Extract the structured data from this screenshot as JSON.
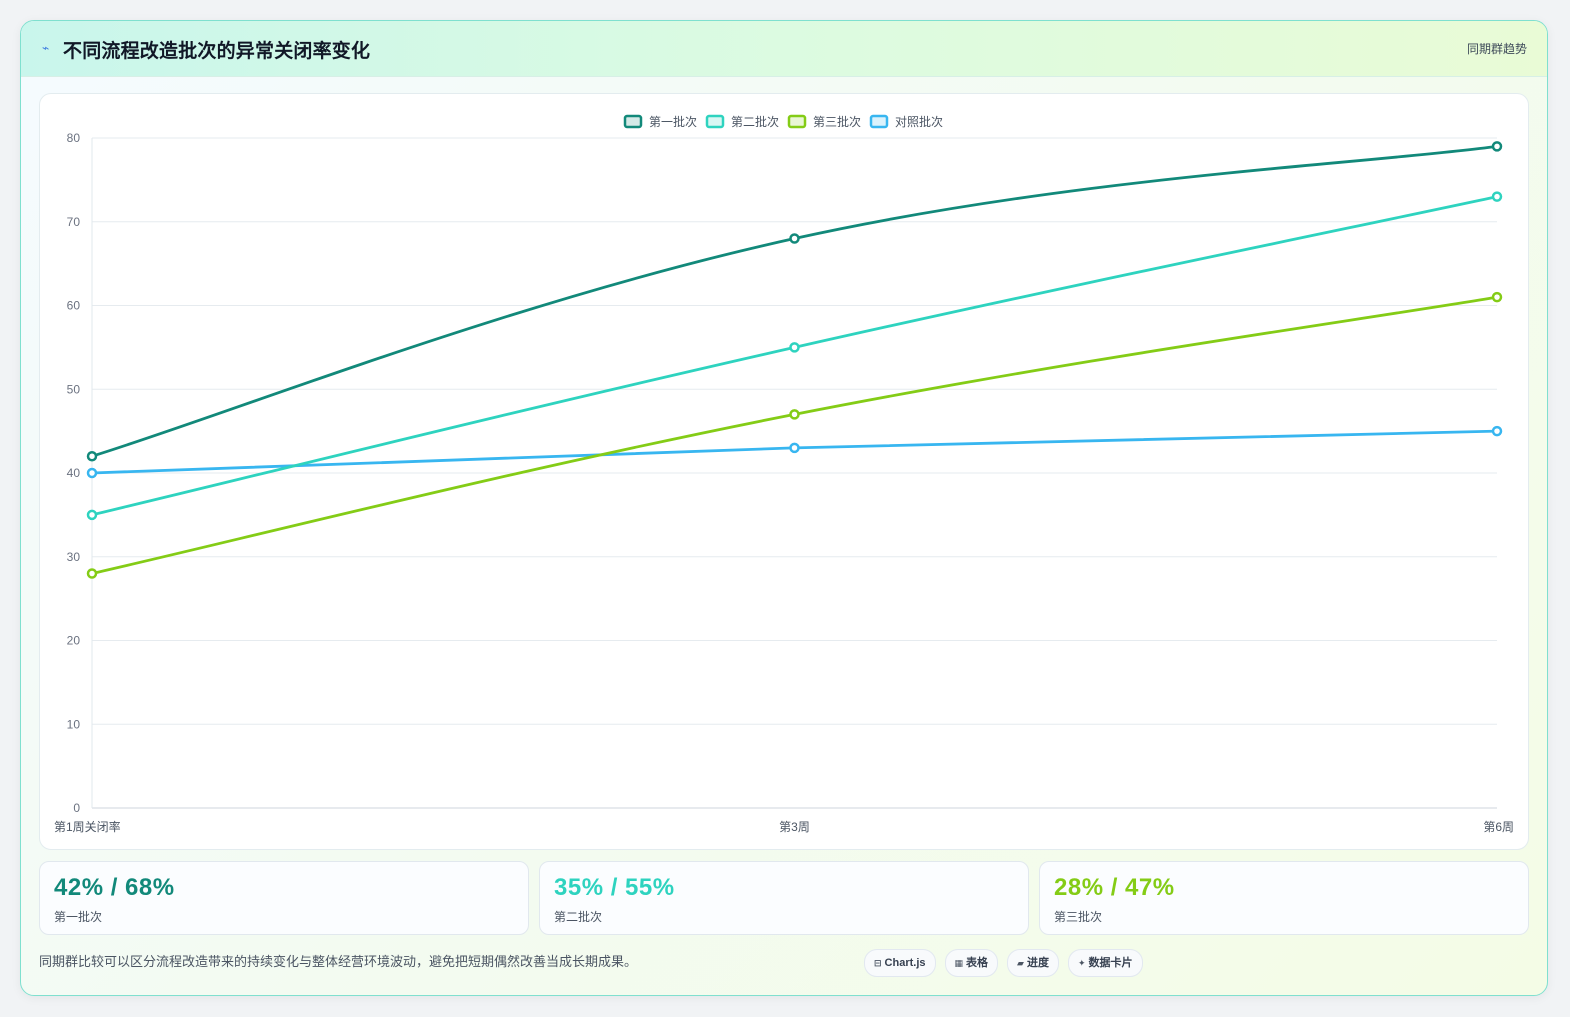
{
  "header": {
    "title": "不同流程改造批次的异常关闭率变化",
    "tag": "同期群趋势",
    "icon": "lightning-icon"
  },
  "chart_data": {
    "type": "line",
    "categories": [
      "第1周关闭率",
      "第3周",
      "第6周"
    ],
    "series": [
      {
        "name": "第一批次",
        "values": [
          42,
          68,
          79
        ],
        "color": "#12897a"
      },
      {
        "name": "第二批次",
        "values": [
          35,
          55,
          73
        ],
        "color": "#2ed3bf"
      },
      {
        "name": "第三批次",
        "values": [
          28,
          47,
          61
        ],
        "color": "#84cc16"
      },
      {
        "name": "对照批次",
        "values": [
          40,
          43,
          45
        ],
        "color": "#38b6f0"
      }
    ],
    "ylim": [
      0,
      80
    ],
    "yticks": [
      0,
      10,
      20,
      30,
      40,
      50,
      60,
      70,
      80
    ],
    "grid": true,
    "legend": "top-center"
  },
  "stats": [
    {
      "value": "42% / 68%",
      "label": "第一批次",
      "color": "#12897a"
    },
    {
      "value": "35% / 55%",
      "label": "第二批次",
      "color": "#2ed3bf"
    },
    {
      "value": "28% / 47%",
      "label": "第三批次",
      "color": "#84cc16"
    }
  ],
  "footnote": "同期群比较可以区分流程改造带来的持续变化与整体经营环境波动，避免把短期偶然改善当成长期成果。",
  "chips": [
    {
      "icon": "⊟",
      "icon_name": "chart-icon",
      "label": "Chart.js"
    },
    {
      "icon": "▦",
      "icon_name": "table-icon",
      "label": "表格"
    },
    {
      "icon": "▰",
      "icon_name": "progress-icon",
      "label": "进度"
    },
    {
      "icon": "✦",
      "icon_name": "sparkle-icon",
      "label": "数据卡片"
    }
  ]
}
